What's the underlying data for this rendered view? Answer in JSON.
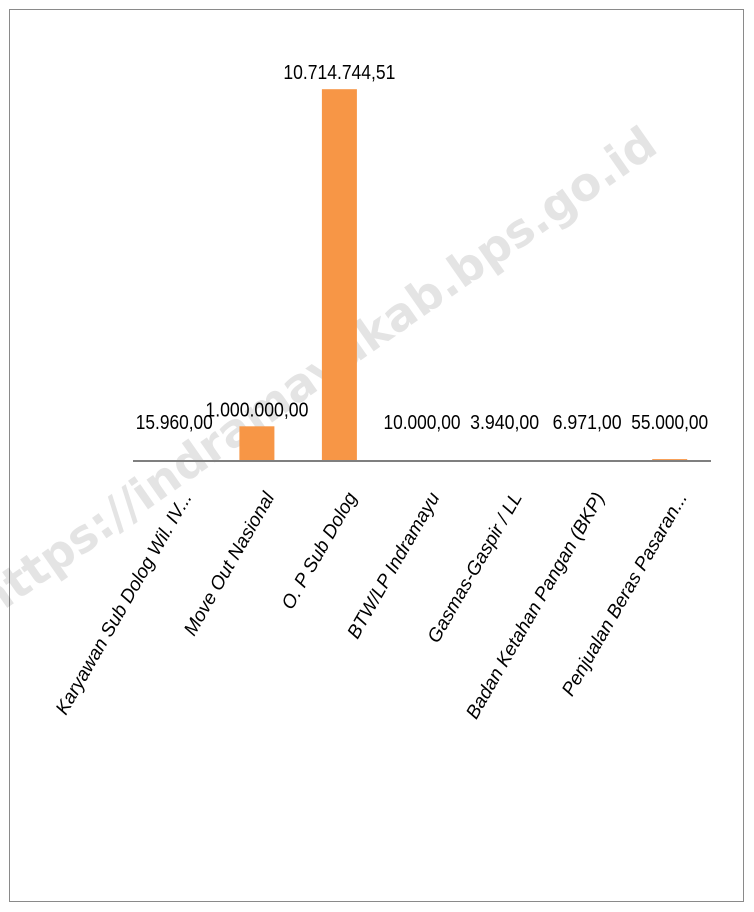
{
  "watermark": "https://indramayukab.bps.go.id",
  "chart_data": {
    "type": "bar",
    "categories": [
      "Karyawan Sub Dolog Wil. IV...",
      "Move Out Nasional",
      "O. P Sub Dolog",
      "BTW/LP Indramayu",
      "Gasmas-Gaspir / LL",
      "Badan Ketahan Pangan (BKP)",
      "Penjualan Beras Pasaran..."
    ],
    "values": [
      15960,
      1000000,
      10714744.51,
      10000,
      3940,
      6971,
      55000
    ],
    "data_labels": [
      "15.960,00",
      "1.000.000,00",
      "10.714.744,51",
      "10.000,00",
      "3.940,00",
      "6.971,00",
      "55.000,00"
    ],
    "ylim": [
      0,
      11500000
    ],
    "bar_color": "#f79646",
    "axis_color": "#7f7f7f",
    "grid": false,
    "legend": "none"
  }
}
